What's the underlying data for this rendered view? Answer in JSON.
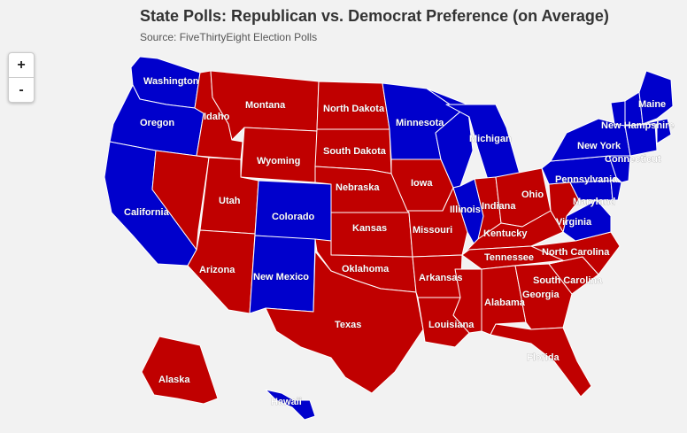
{
  "header": {
    "title": "State Polls: Republican vs. Democrat Preference (on Average)",
    "subtitle": "Source: FiveThirtyEight Election Polls"
  },
  "zoom": {
    "in_label": "+",
    "out_label": "-"
  },
  "colors": {
    "republican": "#c00000",
    "democrat": "#0000cc",
    "background": "#f2f2f2"
  },
  "states": {
    "WA": {
      "name": "Washington",
      "party": "democrat"
    },
    "OR": {
      "name": "Oregon",
      "party": "democrat"
    },
    "CA": {
      "name": "California",
      "party": "democrat"
    },
    "ID": {
      "name": "Idaho",
      "party": "republican"
    },
    "NV": {
      "name": "",
      "party": "republican"
    },
    "MT": {
      "name": "Montana",
      "party": "republican"
    },
    "WY": {
      "name": "Wyoming",
      "party": "republican"
    },
    "UT": {
      "name": "Utah",
      "party": "republican"
    },
    "AZ": {
      "name": "Arizona",
      "party": "republican"
    },
    "CO": {
      "name": "Colorado",
      "party": "democrat"
    },
    "NM": {
      "name": "New Mexico",
      "party": "democrat"
    },
    "ND": {
      "name": "North Dakota",
      "party": "republican"
    },
    "SD": {
      "name": "South Dakota",
      "party": "republican"
    },
    "NE": {
      "name": "Nebraska",
      "party": "republican"
    },
    "KS": {
      "name": "Kansas",
      "party": "republican"
    },
    "OK": {
      "name": "Oklahoma",
      "party": "republican"
    },
    "TX": {
      "name": "Texas",
      "party": "republican"
    },
    "MN": {
      "name": "Minnesota",
      "party": "democrat"
    },
    "IA": {
      "name": "Iowa",
      "party": "republican"
    },
    "MO": {
      "name": "Missouri",
      "party": "republican"
    },
    "AR": {
      "name": "Arkansas",
      "party": "republican"
    },
    "LA": {
      "name": "Louisiana",
      "party": "republican"
    },
    "WI": {
      "name": "",
      "party": "democrat"
    },
    "IL": {
      "name": "Illinois",
      "party": "democrat"
    },
    "MI": {
      "name": "Michigan",
      "party": "democrat"
    },
    "IN": {
      "name": "Indiana",
      "party": "republican"
    },
    "OH": {
      "name": "Ohio",
      "party": "republican"
    },
    "KY": {
      "name": "Kentucky",
      "party": "republican"
    },
    "TN": {
      "name": "Tennessee",
      "party": "republican"
    },
    "MS": {
      "name": "",
      "party": "republican"
    },
    "AL": {
      "name": "Alabama",
      "party": "republican"
    },
    "GA": {
      "name": "Georgia",
      "party": "republican"
    },
    "FL": {
      "name": "Florida",
      "party": "republican"
    },
    "SC": {
      "name": "South Carolina",
      "party": "republican"
    },
    "NC": {
      "name": "North Carolina",
      "party": "republican"
    },
    "VA": {
      "name": "Virginia",
      "party": "democrat"
    },
    "WV": {
      "name": "",
      "party": "republican"
    },
    "MD": {
      "name": "Maryland",
      "party": "democrat"
    },
    "DE": {
      "name": "",
      "party": "democrat"
    },
    "PA": {
      "name": "Pennsylvania",
      "party": "democrat"
    },
    "NY": {
      "name": "New York",
      "party": "democrat"
    },
    "NJ": {
      "name": "",
      "party": "democrat"
    },
    "CT": {
      "name": "Connecticut",
      "party": "democrat"
    },
    "NH": {
      "name": "New Hampshire",
      "party": "democrat"
    },
    "VT": {
      "name": "",
      "party": "democrat"
    },
    "MA": {
      "name": "",
      "party": "democrat"
    },
    "ME": {
      "name": "Maine",
      "party": "democrat"
    },
    "AK": {
      "name": "Alaska",
      "party": "republican"
    },
    "HI": {
      "name": "Hawaii",
      "party": "democrat"
    }
  }
}
